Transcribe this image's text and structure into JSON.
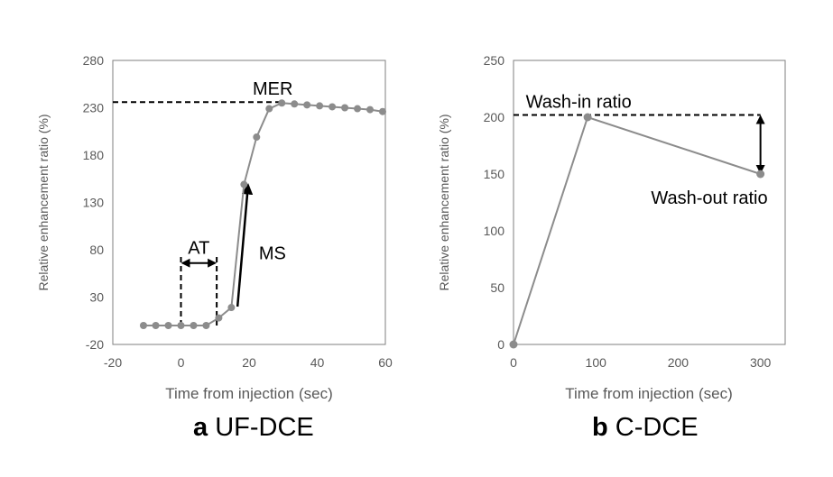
{
  "colors": {
    "series": "#8c8c8c",
    "axis": "#595959",
    "annot": "#000000"
  },
  "chart_data": [
    {
      "type": "line",
      "panel_letter": "a",
      "caption": "UF-DCE",
      "xlabel": "Time from injection (sec)",
      "ylabel": "Relative enhancement ratio (%)",
      "xlim": [
        -20,
        60
      ],
      "ylim": [
        -20,
        280
      ],
      "xticks": [
        -20,
        0,
        20,
        40,
        60
      ],
      "yticks": [
        -20,
        30,
        80,
        130,
        180,
        230,
        280
      ],
      "grid": false,
      "x": [
        -11,
        -7.4,
        -3.7,
        0,
        3.7,
        7.4,
        11.1,
        14.8,
        18.5,
        22.2,
        25.9,
        29.6,
        33.3,
        37,
        40.7,
        44.4,
        48.1,
        51.8,
        55.5,
        59.2
      ],
      "y": [
        0,
        0,
        0,
        0,
        0,
        0,
        8,
        19,
        149,
        199,
        229,
        235,
        234,
        233,
        232,
        231,
        230,
        229,
        228,
        226
      ],
      "annotations": [
        {
          "label": "MER",
          "type": "hline",
          "y": 236,
          "x": [
            -20,
            29
          ]
        },
        {
          "label": "AT",
          "type": "double-arrow",
          "x": [
            0,
            10.5
          ],
          "y": 66
        },
        {
          "label": "MS",
          "type": "arrow",
          "from": [
            16.6,
            20
          ],
          "to": [
            19.7,
            148
          ]
        }
      ]
    },
    {
      "type": "line",
      "panel_letter": "b",
      "caption": "C-DCE",
      "xlabel": "Time from injection (sec)",
      "ylabel": "Relative enhancement ratio (%)",
      "xlim": [
        0,
        330
      ],
      "ylim": [
        0,
        250
      ],
      "xticks": [
        0,
        100,
        200,
        300
      ],
      "yticks": [
        0,
        50,
        100,
        150,
        200,
        250
      ],
      "grid": false,
      "x": [
        0,
        90,
        300
      ],
      "y": [
        0,
        200,
        150
      ],
      "annotations": [
        {
          "label": "Wash-in ratio",
          "type": "hline",
          "y": 202,
          "x": [
            0,
            300
          ]
        },
        {
          "label": "Wash-out ratio",
          "type": "double-arrow-vertical",
          "x": 300,
          "y": [
            202,
            150
          ]
        }
      ]
    }
  ]
}
